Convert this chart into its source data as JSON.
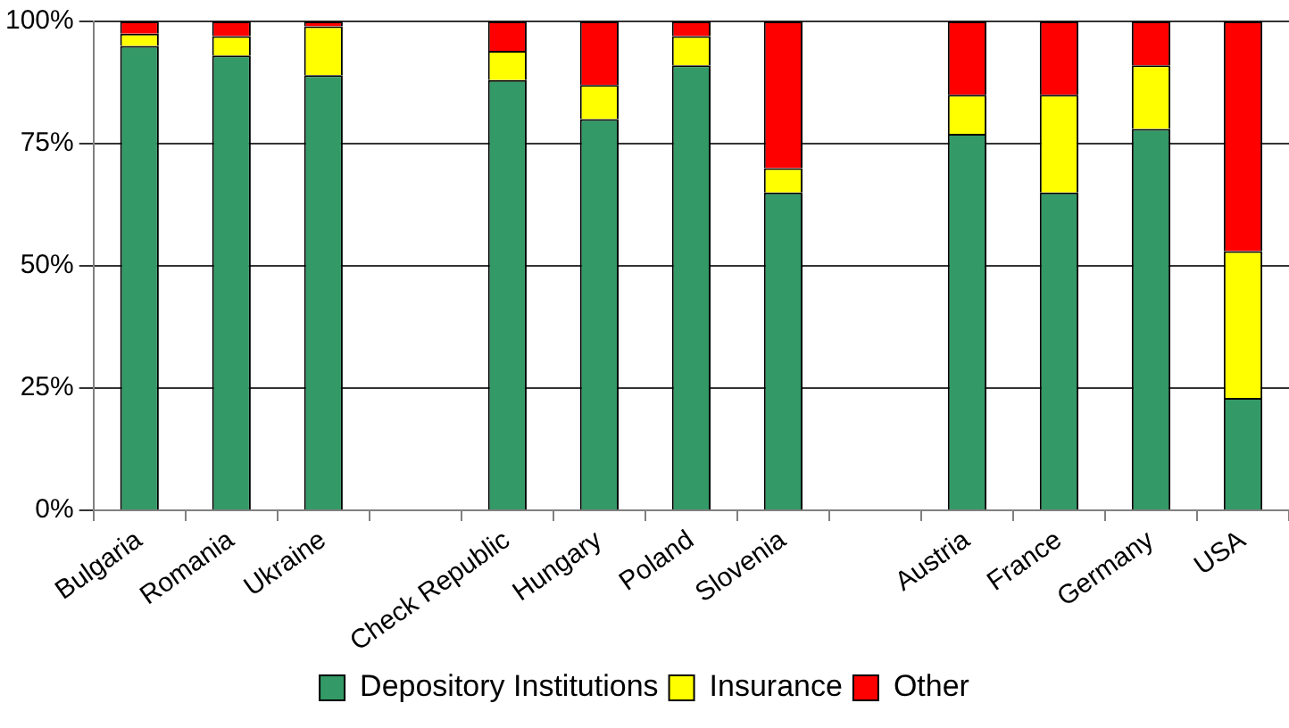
{
  "chart_data": {
    "type": "bar",
    "stacked": true,
    "categories": [
      "Bulgaria",
      "Romania",
      "Ukraine",
      null,
      "Check Republic",
      "Hungary",
      "Poland",
      "Slovenia",
      null,
      "Austria",
      "France",
      "Germany",
      "USA"
    ],
    "series": [
      {
        "name": "Depository Institutions",
        "color": "#339966",
        "values": [
          95,
          93,
          89,
          null,
          88,
          80,
          91,
          65,
          null,
          77,
          65,
          78,
          23
        ]
      },
      {
        "name": "Insurance",
        "color": "#ffff00",
        "values": [
          2.5,
          4,
          10,
          null,
          6,
          7,
          6,
          5,
          null,
          8,
          20,
          13,
          30
        ]
      },
      {
        "name": "Other",
        "color": "#ff0000",
        "values": [
          2.5,
          3,
          1,
          null,
          6,
          13,
          3,
          30,
          null,
          15,
          15,
          9,
          47
        ]
      }
    ],
    "ylim": [
      0,
      100
    ],
    "yticks": [
      {
        "value": 0,
        "label": "0%"
      },
      {
        "value": 25,
        "label": "25%"
      },
      {
        "value": 50,
        "label": "50%"
      },
      {
        "value": 75,
        "label": "75%"
      },
      {
        "value": 100,
        "label": "100%"
      }
    ],
    "grid": "y",
    "legend": "bottom"
  }
}
